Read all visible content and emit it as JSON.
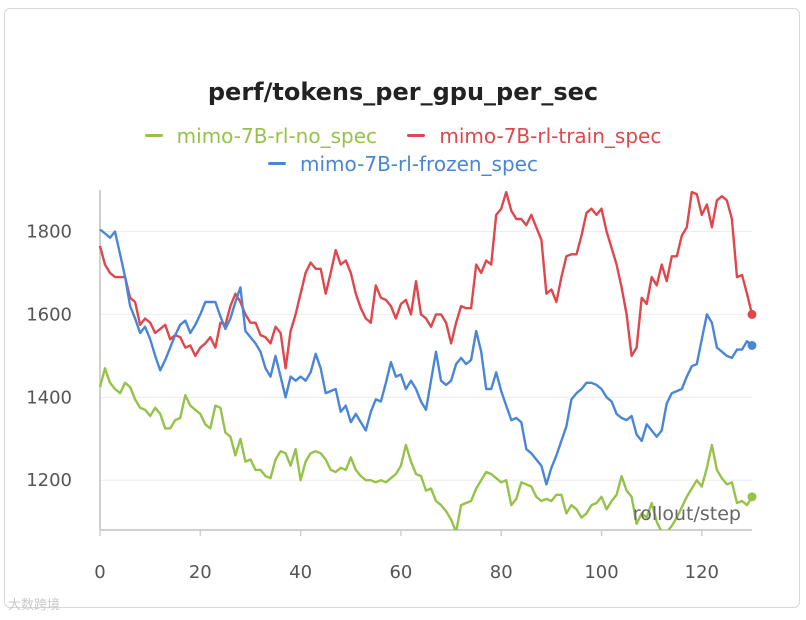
{
  "colors": {
    "no_spec": "#96c24a",
    "train_spec": "#e0474c",
    "frozen_spec": "#4a86d8",
    "grid": "#ececec",
    "axis": "#d0d0d0"
  },
  "watermark": "大数跨境",
  "chart_data": {
    "type": "line",
    "title": "perf/tokens_per_gpu_per_sec",
    "xlabel": "rollout/step",
    "ylabel": "",
    "xlim": [
      0,
      130
    ],
    "ylim": [
      1080,
      1900
    ],
    "x_ticks": [
      0,
      20,
      40,
      60,
      80,
      100,
      120
    ],
    "y_ticks": [
      1200,
      1400,
      1600,
      1800
    ],
    "grid": true,
    "legend_position": "top",
    "x_step": 1,
    "series": [
      {
        "name": "mimo-7B-rl-no_spec",
        "color_key": "no_spec",
        "values": [
          1425,
          1470,
          1435,
          1420,
          1410,
          1435,
          1425,
          1395,
          1375,
          1370,
          1355,
          1375,
          1360,
          1325,
          1325,
          1345,
          1350,
          1405,
          1380,
          1370,
          1360,
          1335,
          1325,
          1380,
          1375,
          1315,
          1305,
          1260,
          1300,
          1245,
          1250,
          1225,
          1225,
          1210,
          1205,
          1250,
          1270,
          1265,
          1235,
          1275,
          1200,
          1245,
          1265,
          1270,
          1265,
          1250,
          1225,
          1220,
          1230,
          1225,
          1255,
          1225,
          1210,
          1200,
          1200,
          1195,
          1200,
          1195,
          1205,
          1215,
          1235,
          1285,
          1245,
          1215,
          1210,
          1175,
          1180,
          1150,
          1140,
          1125,
          1105,
          1075,
          1140,
          1145,
          1150,
          1180,
          1200,
          1220,
          1215,
          1205,
          1195,
          1200,
          1140,
          1155,
          1195,
          1190,
          1185,
          1160,
          1150,
          1155,
          1150,
          1165,
          1165,
          1120,
          1140,
          1130,
          1110,
          1120,
          1140,
          1145,
          1160,
          1130,
          1150,
          1165,
          1210,
          1175,
          1160,
          1095,
          1120,
          1110,
          1145,
          1100,
          1075,
          1075,
          1090,
          1110,
          1135,
          1160,
          1180,
          1200,
          1185,
          1230,
          1285,
          1225,
          1205,
          1190,
          1195,
          1145,
          1150,
          1140,
          1160
        ]
      },
      {
        "name": "mimo-7B-rl-train_spec",
        "color_key": "train_spec",
        "values": [
          1765,
          1720,
          1700,
          1690,
          1690,
          1690,
          1640,
          1630,
          1575,
          1590,
          1580,
          1555,
          1565,
          1575,
          1540,
          1550,
          1545,
          1520,
          1525,
          1500,
          1520,
          1530,
          1545,
          1520,
          1580,
          1575,
          1620,
          1650,
          1630,
          1600,
          1580,
          1580,
          1550,
          1545,
          1530,
          1570,
          1555,
          1470,
          1560,
          1600,
          1650,
          1700,
          1725,
          1710,
          1710,
          1650,
          1700,
          1755,
          1720,
          1730,
          1700,
          1650,
          1615,
          1590,
          1580,
          1670,
          1640,
          1635,
          1620,
          1590,
          1625,
          1635,
          1600,
          1680,
          1600,
          1590,
          1570,
          1600,
          1600,
          1580,
          1530,
          1580,
          1620,
          1615,
          1615,
          1720,
          1700,
          1730,
          1720,
          1840,
          1855,
          1895,
          1850,
          1830,
          1830,
          1815,
          1840,
          1810,
          1780,
          1650,
          1660,
          1630,
          1690,
          1740,
          1745,
          1745,
          1790,
          1845,
          1855,
          1840,
          1855,
          1800,
          1760,
          1720,
          1665,
          1600,
          1500,
          1520,
          1640,
          1625,
          1690,
          1670,
          1720,
          1680,
          1740,
          1740,
          1790,
          1810,
          1895,
          1890,
          1840,
          1865,
          1810,
          1875,
          1885,
          1875,
          1830,
          1690,
          1695,
          1650,
          1600
        ]
      },
      {
        "name": "mimo-7B-rl-frozen_spec",
        "color_key": "frozen_spec",
        "values": [
          1805,
          1795,
          1785,
          1800,
          1745,
          1690,
          1620,
          1590,
          1555,
          1570,
          1540,
          1500,
          1465,
          1490,
          1520,
          1550,
          1575,
          1585,
          1555,
          1575,
          1600,
          1630,
          1630,
          1630,
          1595,
          1565,
          1590,
          1630,
          1665,
          1560,
          1545,
          1530,
          1510,
          1470,
          1450,
          1500,
          1450,
          1400,
          1450,
          1440,
          1450,
          1440,
          1460,
          1505,
          1470,
          1410,
          1415,
          1420,
          1365,
          1380,
          1340,
          1360,
          1340,
          1320,
          1365,
          1395,
          1390,
          1435,
          1485,
          1450,
          1455,
          1420,
          1440,
          1420,
          1390,
          1370,
          1440,
          1510,
          1440,
          1430,
          1440,
          1480,
          1495,
          1480,
          1490,
          1560,
          1510,
          1420,
          1420,
          1460,
          1415,
          1380,
          1345,
          1350,
          1340,
          1275,
          1265,
          1250,
          1235,
          1190,
          1230,
          1260,
          1295,
          1330,
          1395,
          1410,
          1420,
          1435,
          1435,
          1430,
          1420,
          1400,
          1390,
          1360,
          1350,
          1345,
          1355,
          1310,
          1295,
          1335,
          1320,
          1305,
          1320,
          1385,
          1410,
          1415,
          1420,
          1450,
          1475,
          1480,
          1540,
          1600,
          1580,
          1520,
          1510,
          1500,
          1495,
          1515,
          1515,
          1535,
          1525
        ]
      }
    ]
  }
}
